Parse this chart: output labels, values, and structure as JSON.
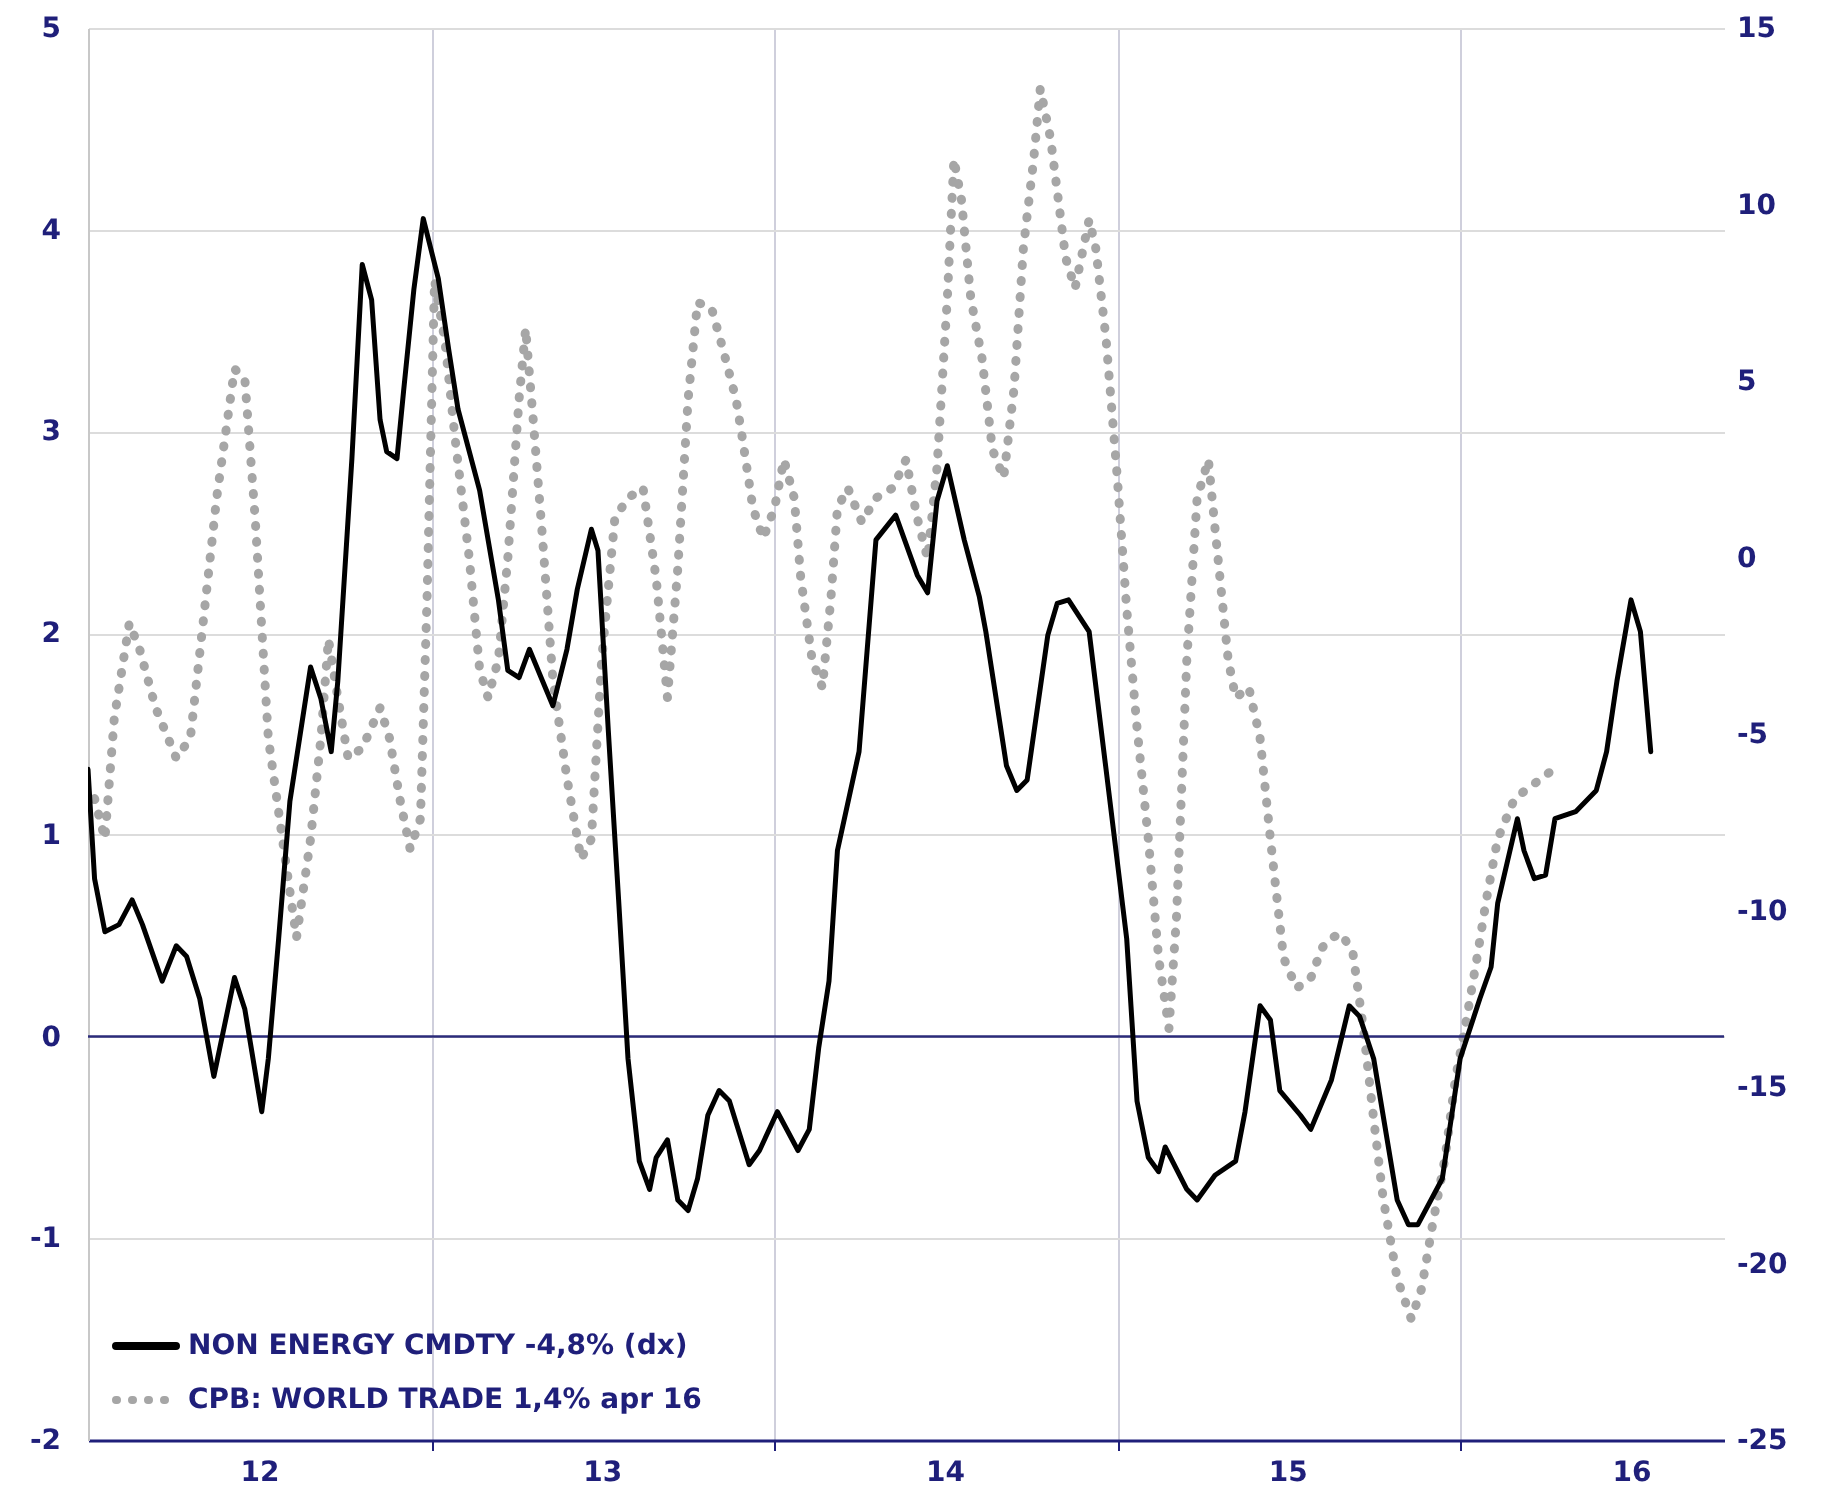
{
  "chart_data": {
    "type": "line",
    "xlim": [
      "2012-01-01",
      "2016-10-08"
    ],
    "xticks": [
      {
        "value": "2012-07-01",
        "label": "12"
      },
      {
        "value": "2013-01-01",
        "label": null
      },
      {
        "value": "2013-07-01",
        "label": "13"
      },
      {
        "value": "2014-01-01",
        "label": null
      },
      {
        "value": "2014-07-01",
        "label": "14"
      },
      {
        "value": "2015-01-01",
        "label": null
      },
      {
        "value": "2015-07-01",
        "label": "15"
      },
      {
        "value": "2016-01-01",
        "label": null
      },
      {
        "value": "2016-07-01",
        "label": "16"
      }
    ],
    "ylim": [
      -2,
      5
    ],
    "yticks": [
      -2,
      -1,
      0,
      1,
      2,
      3,
      4,
      5
    ],
    "y2lim": [
      -25,
      15
    ],
    "y2ticks": [
      -25,
      -20,
      -15,
      -10,
      -5,
      0,
      5,
      10,
      15
    ],
    "grid": true,
    "legend": "bottom left",
    "ref_lines": [
      {
        "axis": "y",
        "value": 0,
        "color": "#2b2b7a"
      }
    ],
    "series": [
      {
        "name": "NON ENERGY CMDTY -4,8% (dx)",
        "color": "#000000",
        "axis": "y2",
        "line_style": "solid",
        "x": [
          "2012-01-01",
          "2012-01-08",
          "2012-01-19",
          "2012-02-03",
          "2012-02-17",
          "2012-02-28",
          "2012-03-20",
          "2012-04-04",
          "2012-04-15",
          "2012-04-29",
          "2012-05-14",
          "2012-06-05",
          "2012-06-16",
          "2012-07-04",
          "2012-07-11",
          "2012-07-22",
          "2012-08-03",
          "2012-08-25",
          "2012-09-05",
          "2012-09-16",
          "2012-09-23",
          "2012-10-08",
          "2012-10-19",
          "2012-10-29",
          "2012-11-07",
          "2012-11-14",
          "2012-11-25",
          "2012-12-02",
          "2012-12-13",
          "2012-12-23",
          "2013-01-08",
          "2013-01-19",
          "2013-01-29",
          "2013-02-21",
          "2013-03-13",
          "2013-03-23",
          "2013-04-04",
          "2013-04-15",
          "2013-04-29",
          "2013-05-10",
          "2013-05-25",
          "2013-06-05",
          "2013-06-20",
          "2013-06-27",
          "2013-07-08",
          "2013-07-19",
          "2013-07-29",
          "2013-08-10",
          "2013-08-21",
          "2013-08-28",
          "2013-09-09",
          "2013-09-20",
          "2013-10-01",
          "2013-10-11",
          "2013-10-22",
          "2013-11-03",
          "2013-11-14",
          "2013-12-05",
          "2013-12-16",
          "2014-01-04",
          "2014-01-26",
          "2014-02-07",
          "2014-02-17",
          "2014-02-28",
          "2014-03-09",
          "2014-04-01",
          "2014-04-19",
          "2014-05-10",
          "2014-06-02",
          "2014-06-13",
          "2014-06-23",
          "2014-07-04",
          "2014-07-22",
          "2014-08-07",
          "2014-08-14",
          "2014-09-05",
          "2014-09-16",
          "2014-09-27",
          "2014-10-19",
          "2014-10-29",
          "2014-11-10",
          "2014-12-02",
          "2014-12-20",
          "2015-01-11",
          "2015-01-22",
          "2015-02-03",
          "2015-02-14",
          "2015-02-21",
          "2015-03-16",
          "2015-03-27",
          "2015-04-15",
          "2015-05-07",
          "2015-05-17",
          "2015-06-02",
          "2015-06-13",
          "2015-06-23",
          "2015-07-15",
          "2015-07-26",
          "2015-08-17",
          "2015-09-05",
          "2015-09-16",
          "2015-10-01",
          "2015-10-26",
          "2015-11-07",
          "2015-11-17",
          "2015-12-13",
          "2016-01-01",
          "2016-01-22",
          "2016-02-03",
          "2016-02-10",
          "2016-03-02",
          "2016-03-09",
          "2016-03-20",
          "2016-04-01",
          "2016-04-11",
          "2016-05-03",
          "2016-05-25",
          "2016-06-05",
          "2016-06-16",
          "2016-07-01",
          "2016-07-11",
          "2016-07-22"
        ],
        "values": [
          -6.0,
          -9.1,
          -10.6,
          -10.4,
          -9.7,
          -10.4,
          -12.0,
          -11.0,
          -11.3,
          -12.5,
          -14.7,
          -11.9,
          -12.8,
          -15.7,
          -14.2,
          -10.8,
          -6.9,
          -3.1,
          -4.0,
          -5.5,
          -3.5,
          2.8,
          8.3,
          7.3,
          3.9,
          3.0,
          2.8,
          4.7,
          7.6,
          9.6,
          7.9,
          5.9,
          4.2,
          1.9,
          -1.2,
          -3.2,
          -3.4,
          -2.6,
          -3.5,
          -4.2,
          -2.6,
          -0.9,
          0.8,
          0.2,
          -4.9,
          -9.7,
          -14.2,
          -17.1,
          -17.9,
          -17.0,
          -16.5,
          -18.2,
          -18.5,
          -17.6,
          -15.8,
          -15.1,
          -15.4,
          -17.2,
          -16.8,
          -15.7,
          -16.8,
          -16.2,
          -13.9,
          -12.0,
          -8.3,
          -5.5,
          0.5,
          1.2,
          -0.5,
          -1.0,
          1.6,
          2.6,
          0.5,
          -1.1,
          -2.1,
          -5.9,
          -6.6,
          -6.3,
          -2.2,
          -1.3,
          -1.2,
          -2.1,
          -6.0,
          -10.8,
          -15.4,
          -17.0,
          -17.4,
          -16.7,
          -17.9,
          -18.2,
          -17.5,
          -17.1,
          -15.7,
          -12.7,
          -13.1,
          -15.1,
          -15.8,
          -16.2,
          -14.8,
          -12.7,
          -13.0,
          -14.2,
          -18.2,
          -18.9,
          -18.9,
          -17.6,
          -14.2,
          -12.5,
          -11.6,
          -9.8,
          -7.4,
          -8.3,
          -9.1,
          -9.0,
          -7.4,
          -7.2,
          -6.6,
          -5.5,
          -3.5,
          -1.2,
          -2.1,
          -5.5
        ]
      },
      {
        "name": "CPB: WORLD TRADE 1,4% apr 16",
        "color": "#a6a6a6",
        "axis": "y",
        "line_style": "dotted",
        "x": [
          "2012-01-08",
          "2012-01-19",
          "2012-01-29",
          "2012-02-14",
          "2012-02-25",
          "2012-03-13",
          "2012-04-04",
          "2012-04-19",
          "2012-05-03",
          "2012-05-17",
          "2012-06-05",
          "2012-06-16",
          "2012-06-27",
          "2012-07-11",
          "2012-07-26",
          "2012-08-10",
          "2012-08-25",
          "2012-09-05",
          "2012-09-13",
          "2012-09-23",
          "2012-10-04",
          "2012-10-19",
          "2012-11-07",
          "2012-11-17",
          "2012-11-28",
          "2012-12-09",
          "2012-12-20",
          "2012-12-27",
          "2013-01-04",
          "2013-01-15",
          "2013-01-26",
          "2013-02-10",
          "2013-02-21",
          "2013-03-02",
          "2013-03-13",
          "2013-03-23",
          "2013-04-04",
          "2013-04-11",
          "2013-04-19",
          "2013-04-29",
          "2013-05-10",
          "2013-05-25",
          "2013-06-09",
          "2013-06-20",
          "2013-07-01",
          "2013-07-15",
          "2013-07-29",
          "2013-08-14",
          "2013-08-28",
          "2013-09-09",
          "2013-09-20",
          "2013-10-01",
          "2013-10-11",
          "2013-10-26",
          "2013-11-07",
          "2013-11-21",
          "2013-11-28",
          "2013-12-09",
          "2013-12-20",
          "2014-01-01",
          "2014-01-11",
          "2014-01-22",
          "2014-01-29",
          "2014-02-10",
          "2014-02-21",
          "2014-03-02",
          "2014-03-09",
          "2014-03-20",
          "2014-04-04",
          "2014-04-19",
          "2014-05-07",
          "2014-05-21",
          "2014-06-02",
          "2014-06-13",
          "2014-06-23",
          "2014-07-04",
          "2014-07-11",
          "2014-07-19",
          "2014-07-29",
          "2014-08-10",
          "2014-08-21",
          "2014-09-02",
          "2014-09-13",
          "2014-09-23",
          "2014-10-04",
          "2014-10-11",
          "2014-10-22",
          "2014-11-07",
          "2014-11-17",
          "2014-12-02",
          "2014-12-09",
          "2014-12-20",
          "2015-01-01",
          "2015-01-11",
          "2015-01-22",
          "2015-02-03",
          "2015-02-14",
          "2015-02-25",
          "2015-03-05",
          "2015-03-16",
          "2015-03-27",
          "2015-04-08",
          "2015-04-15",
          "2015-04-29",
          "2015-05-07",
          "2015-05-21",
          "2015-06-02",
          "2015-06-13",
          "2015-06-27",
          "2015-07-11",
          "2015-07-26",
          "2015-08-07",
          "2015-08-17",
          "2015-08-28",
          "2015-09-09",
          "2015-09-20",
          "2015-10-01",
          "2015-10-11",
          "2015-10-26",
          "2015-11-10",
          "2015-11-21",
          "2015-12-02",
          "2015-12-16",
          "2015-12-27",
          "2016-01-08",
          "2016-01-19",
          "2016-01-29",
          "2016-02-10",
          "2016-02-28",
          "2016-04-08"
        ],
        "values": [
          1.18,
          0.98,
          1.58,
          2.05,
          1.92,
          1.63,
          1.38,
          1.48,
          2.07,
          2.67,
          3.31,
          3.26,
          2.57,
          1.48,
          0.98,
          0.49,
          0.98,
          1.48,
          1.97,
          1.68,
          1.38,
          1.43,
          1.63,
          1.48,
          1.18,
          0.93,
          1.08,
          2.17,
          3.75,
          3.45,
          2.96,
          2.37,
          1.82,
          1.68,
          1.87,
          2.37,
          3.16,
          3.51,
          3.06,
          2.47,
          1.77,
          1.28,
          0.88,
          0.98,
          1.87,
          2.57,
          2.67,
          2.72,
          2.27,
          1.68,
          2.32,
          3.16,
          3.64,
          3.61,
          3.41,
          3.16,
          2.96,
          2.62,
          2.47,
          2.62,
          2.86,
          2.67,
          2.27,
          1.87,
          1.73,
          2.17,
          2.62,
          2.72,
          2.55,
          2.67,
          2.72,
          2.86,
          2.57,
          2.37,
          2.82,
          3.66,
          4.35,
          4.15,
          3.66,
          3.36,
          2.91,
          2.77,
          3.21,
          3.91,
          4.35,
          4.7,
          4.45,
          3.86,
          3.71,
          4.05,
          3.91,
          3.46,
          2.77,
          2.12,
          1.53,
          0.98,
          0.39,
          0.04,
          0.59,
          1.87,
          2.67,
          2.86,
          2.52,
          1.87,
          1.68,
          1.73,
          1.48,
          0.98,
          0.39,
          0.24,
          0.29,
          0.44,
          0.49,
          0.51,
          0.41,
          0.04,
          -0.41,
          -0.8,
          -1.2,
          -1.4,
          -1.25,
          -0.95,
          -0.6,
          -0.21,
          0.09,
          0.39,
          0.68,
          0.98,
          1.18,
          1.32
        ]
      }
    ]
  }
}
